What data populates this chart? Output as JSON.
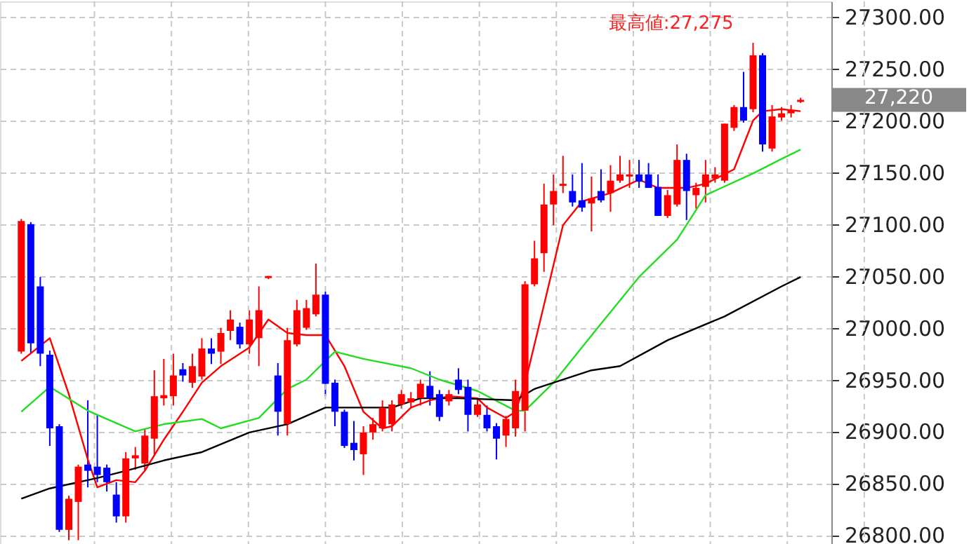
{
  "chart_data": {
    "type": "candlestick",
    "categories": [
      null,
      null,
      null,
      null,
      null,
      null,
      null,
      null,
      null,
      null,
      null,
      null,
      null,
      null,
      null,
      null,
      null,
      null,
      null,
      null,
      null,
      null,
      null,
      null,
      null,
      null,
      null,
      null,
      null,
      null,
      null,
      null,
      null,
      null,
      null,
      null,
      null,
      null,
      null,
      null,
      null,
      null,
      null,
      null,
      null,
      null,
      null,
      null,
      null,
      null,
      null,
      null,
      null,
      null,
      null,
      null,
      null,
      null,
      null,
      null,
      null,
      null,
      null,
      null,
      null,
      null,
      null,
      null,
      null,
      null,
      null,
      null,
      null,
      null,
      null,
      null,
      null,
      null,
      null,
      null,
      null,
      null,
      null
    ],
    "ohlc": [
      [
        26977,
        27105,
        26975,
        27103
      ],
      [
        27100,
        27102,
        26975,
        26985
      ],
      [
        27040,
        27049,
        26963,
        26975
      ],
      [
        26974,
        26978,
        26886,
        26903
      ],
      [
        26905,
        26907,
        26803,
        26805
      ],
      [
        26805,
        26838,
        26795,
        26835
      ],
      [
        26832,
        26868,
        26795,
        26866
      ],
      [
        26868,
        26930,
        26846,
        26862
      ],
      [
        26866,
        26916,
        26851,
        26858
      ],
      [
        26865,
        26868,
        26842,
        26851
      ],
      [
        26839,
        26851,
        26812,
        26818
      ],
      [
        26818,
        26880,
        26812,
        26874
      ],
      [
        26874,
        26885,
        26863,
        26877
      ],
      [
        26869,
        26903,
        26862,
        26896
      ],
      [
        26893,
        26959,
        26878,
        26934
      ],
      [
        26932,
        26970,
        26925,
        26935
      ],
      [
        26934,
        26975,
        26925,
        26954
      ],
      [
        26960,
        26966,
        26948,
        26954
      ],
      [
        26947,
        26975,
        26942,
        26963
      ],
      [
        26953,
        26990,
        26950,
        26980
      ],
      [
        26980,
        26990,
        26965,
        26975
      ],
      [
        26977,
        27000,
        26965,
        26995
      ],
      [
        26997,
        27017,
        26988,
        27008
      ],
      [
        27001,
        27005,
        26980,
        26984
      ],
      [
        26984,
        27017,
        26975,
        27008
      ],
      [
        26990,
        27040,
        26963,
        27017
      ],
      [
        27048,
        27050,
        27047,
        27050
      ],
      [
        26954,
        26966,
        26896,
        26919
      ],
      [
        26907,
        27000,
        26896,
        26988
      ],
      [
        26984,
        27027,
        26982,
        27017
      ],
      [
        27000,
        27027,
        26998,
        27019
      ],
      [
        27013,
        27062,
        27011,
        27032
      ],
      [
        27032,
        27035,
        26934,
        26946
      ],
      [
        26947,
        26950,
        26905,
        26919
      ],
      [
        26919,
        26921,
        26884,
        26886
      ],
      [
        26889,
        26910,
        26872,
        26882
      ],
      [
        26878,
        26905,
        26858,
        26899
      ],
      [
        26899,
        26913,
        26892,
        26907
      ],
      [
        26903,
        26930,
        26900,
        26923
      ],
      [
        26907,
        26930,
        26900,
        26926
      ],
      [
        26926,
        26940,
        26922,
        26936
      ],
      [
        26928,
        26938,
        26922,
        26932
      ],
      [
        26932,
        26950,
        26925,
        26946
      ],
      [
        26944,
        26958,
        26925,
        26932
      ],
      [
        26936,
        26940,
        26910,
        26914
      ],
      [
        26929,
        26940,
        26925,
        26936
      ],
      [
        26950,
        26961,
        26936,
        26940
      ],
      [
        26943,
        26950,
        26900,
        26916
      ],
      [
        26916,
        26932,
        26914,
        26926
      ],
      [
        26916,
        26925,
        26900,
        26903
      ],
      [
        26905,
        26908,
        26873,
        26893
      ],
      [
        26896,
        26915,
        26885,
        26912
      ],
      [
        26903,
        26950,
        26895,
        26939
      ],
      [
        26920,
        27045,
        26900,
        27042
      ],
      [
        27042,
        27084,
        27040,
        27067
      ],
      [
        27072,
        27139,
        27054,
        27119
      ],
      [
        27119,
        27148,
        27099,
        27132
      ],
      [
        27137,
        27166,
        27130,
        27139
      ],
      [
        27132,
        27148,
        27117,
        27121
      ],
      [
        27123,
        27159,
        27112,
        27116
      ],
      [
        27120,
        27146,
        27093,
        27125
      ],
      [
        27132,
        27153,
        27121,
        27123
      ],
      [
        27130,
        27157,
        27112,
        27142
      ],
      [
        27142,
        27166,
        27140,
        27148
      ],
      [
        27146,
        27162,
        27135,
        27148
      ],
      [
        27148,
        27162,
        27135,
        27141
      ],
      [
        27148,
        27159,
        27135,
        27135
      ],
      [
        27136,
        27148,
        27108,
        27108
      ],
      [
        27108,
        27133,
        27106,
        27128
      ],
      [
        27119,
        27177,
        27117,
        27162
      ],
      [
        27162,
        27168,
        27104,
        27132
      ],
      [
        27128,
        27140,
        27115,
        27135
      ],
      [
        27136,
        27162,
        27121,
        27148
      ],
      [
        27144,
        27155,
        27140,
        27148
      ],
      [
        27142,
        27197,
        27140,
        27197
      ],
      [
        27193,
        27215,
        27190,
        27213
      ],
      [
        27213,
        27247,
        27198,
        27200
      ],
      [
        27211,
        27275,
        27208,
        27263
      ],
      [
        27263,
        27265,
        27170,
        27177
      ],
      [
        27173,
        27215,
        27170,
        27204
      ],
      [
        27203,
        27213,
        27200,
        27207
      ],
      [
        27207,
        27215,
        27203,
        27210
      ],
      [
        27218,
        27222,
        27217,
        27220
      ]
    ],
    "colors": [
      "#ff0000",
      "#0000ff",
      "#0000ff",
      "#0000ff",
      "#0000ff",
      "#ff0000",
      "#ff0000",
      "#0000ff",
      "#0000ff",
      "#0000ff",
      "#0000ff",
      "#ff0000",
      "#ff0000",
      "#ff0000",
      "#ff0000",
      "#ff0000",
      "#ff0000",
      "#0000ff",
      "#ff0000",
      "#ff0000",
      "#0000ff",
      "#ff0000",
      "#ff0000",
      "#0000ff",
      "#ff0000",
      "#ff0000",
      "#ff0000",
      "#0000ff",
      "#ff0000",
      "#ff0000",
      "#ff0000",
      "#ff0000",
      "#0000ff",
      "#0000ff",
      "#0000ff",
      "#0000ff",
      "#ff0000",
      "#ff0000",
      "#ff0000",
      "#ff0000",
      "#ff0000",
      "#ff0000",
      "#ff0000",
      "#0000ff",
      "#0000ff",
      "#ff0000",
      "#0000ff",
      "#0000ff",
      "#ff0000",
      "#0000ff",
      "#0000ff",
      "#ff0000",
      "#ff0000",
      "#ff0000",
      "#ff0000",
      "#ff0000",
      "#ff0000",
      "#ff0000",
      "#0000ff",
      "#0000ff",
      "#ff0000",
      "#0000ff",
      "#ff0000",
      "#ff0000",
      "#ff0000",
      "#0000ff",
      "#0000ff",
      "#0000ff",
      "#ff0000",
      "#ff0000",
      "#0000ff",
      "#ff0000",
      "#ff0000",
      "#ff0000",
      "#ff0000",
      "#ff0000",
      "#0000ff",
      "#ff0000",
      "#0000ff",
      "#ff0000",
      "#ff0000",
      "#ff0000",
      "#ff0000"
    ],
    "series": [
      {
        "type": "line",
        "color": "#ff0000",
        "values": [
          26968,
          null,
          null,
          26990,
          null,
          26936,
          null,
          26873,
          26846,
          null,
          26853,
          null,
          26851,
          26862,
          null,
          26892,
          null,
          26919,
          null,
          26947,
          null,
          26963,
          null,
          null,
          26981,
          null,
          27008,
          null,
          26995,
          null,
          26993,
          null,
          26993,
          null,
          26963,
          null,
          26919,
          null,
          26903,
          26905,
          null,
          26923,
          null,
          26930,
          null,
          26934,
          null,
          null,
          26932,
          26923,
          null,
          26913,
          26919,
          26946,
          null,
          27022,
          null,
          27099,
          null,
          27122,
          null,
          null,
          27130,
          null,
          null,
          27143,
          null,
          27135,
          null,
          null,
          27135,
          null,
          27139,
          null,
          null,
          27153,
          null,
          27200,
          27209,
          null,
          27211,
          null,
          27209
        ]
      },
      {
        "type": "line",
        "color": "#22dd22",
        "values": [
          26919,
          null,
          null,
          26943,
          null,
          null,
          null,
          26920,
          null,
          null,
          null,
          null,
          26900,
          null,
          null,
          26907,
          null,
          null,
          null,
          26912,
          null,
          26903,
          null,
          null,
          null,
          26913,
          null,
          null,
          26941,
          null,
          26950,
          null,
          null,
          26977,
          null,
          null,
          26970,
          null,
          null,
          null,
          null,
          26961,
          null,
          null,
          26950,
          null,
          null,
          null,
          26939,
          null,
          null,
          null,
          26920,
          26920,
          null,
          null,
          26947,
          null,
          null,
          null,
          null,
          27004,
          null,
          null,
          null,
          27049,
          null,
          null,
          null,
          27085,
          null,
          null,
          27128,
          null,
          null,
          null,
          null,
          27149,
          null,
          null,
          27163,
          null,
          27172
        ]
      },
      {
        "type": "line",
        "color": "#000000",
        "values": [
          26835,
          null,
          null,
          26845,
          null,
          null,
          null,
          null,
          26855,
          null,
          null,
          26862,
          null,
          null,
          null,
          26872,
          null,
          null,
          null,
          26880,
          null,
          null,
          null,
          null,
          26899,
          null,
          null,
          null,
          26907,
          null,
          null,
          null,
          26923,
          null,
          null,
          null,
          null,
          null,
          null,
          26923,
          null,
          null,
          26932,
          null,
          null,
          null,
          26932,
          null,
          null,
          null,
          null,
          null,
          26930,
          null,
          26941,
          null,
          null,
          null,
          null,
          null,
          26959,
          null,
          null,
          26963,
          null,
          null,
          null,
          null,
          26988,
          null,
          null,
          null,
          null,
          null,
          27011,
          null,
          null,
          null,
          null,
          null,
          27040,
          null,
          27049
        ]
      }
    ],
    "ylim": [
      26790,
      27315
    ],
    "yticks": [
      {
        "value": 26800,
        "label": "26800.00"
      },
      {
        "value": 26850,
        "label": "26850.00"
      },
      {
        "value": 26900,
        "label": "26900.00"
      },
      {
        "value": 26950,
        "label": "26950.00"
      },
      {
        "value": 27000,
        "label": "27000.00"
      },
      {
        "value": 27050,
        "label": "27050.00"
      },
      {
        "value": 27100,
        "label": "27100.00"
      },
      {
        "value": 27150,
        "label": "27150.00"
      },
      {
        "value": 27200,
        "label": "27200.00"
      },
      {
        "value": 27250,
        "label": "27250.00"
      },
      {
        "value": 27300,
        "label": "27300.00"
      }
    ],
    "grid": true,
    "annotations": [
      "最高値:27,275",
      "27,220"
    ]
  }
}
